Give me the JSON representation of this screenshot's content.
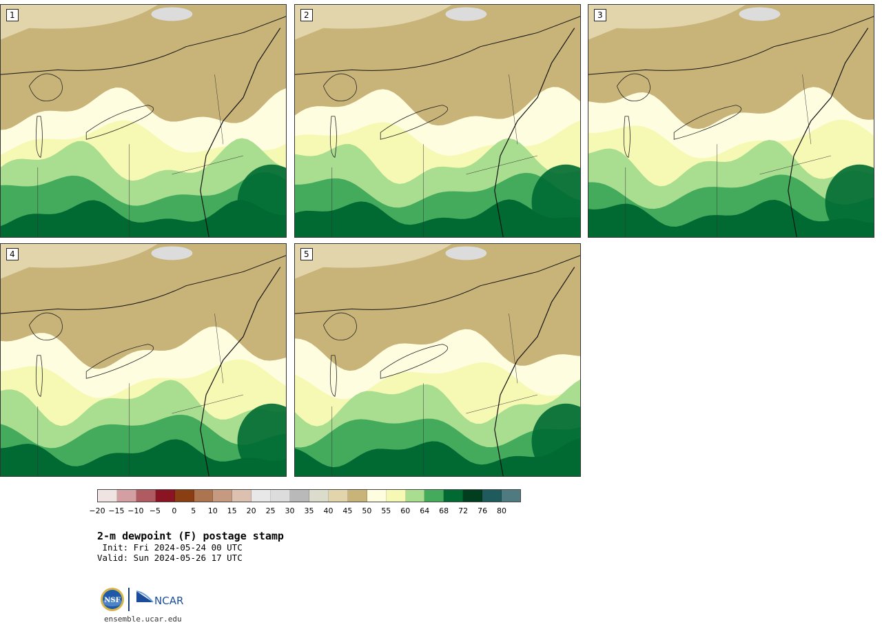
{
  "panels": [
    {
      "label": "1"
    },
    {
      "label": "2"
    },
    {
      "label": "3"
    },
    {
      "label": "4"
    },
    {
      "label": "5"
    }
  ],
  "colorbar": {
    "colors": [
      "#efe4e2",
      "#d39fa3",
      "#b05b62",
      "#8a1421",
      "#8a3f13",
      "#ad754f",
      "#c59a80",
      "#dcc0b0",
      "#e8e8e8",
      "#dcdcdc",
      "#b9b9b9",
      "#dcdccd",
      "#e2d5ac",
      "#c8b378",
      "#fffde0",
      "#f6f9b4",
      "#a9dd90",
      "#44aa5c",
      "#006a32",
      "#003e1f",
      "#1f5a5c",
      "#4f7b80"
    ],
    "ticks": [
      "−20",
      "−15",
      "−10",
      "−5",
      "0",
      "5",
      "10",
      "15",
      "20",
      "25",
      "30",
      "35",
      "40",
      "45",
      "50",
      "55",
      "60",
      "64",
      "68",
      "72",
      "76",
      "80"
    ]
  },
  "title": "2-m dewpoint (F) postage stamp",
  "init": " Init: Fri 2024-05-24 00 UTC",
  "valid": "Valid: Sun 2024-05-26 17 UTC",
  "logo": {
    "left": "NSF",
    "right": "NCAR"
  },
  "url": "ensemble.ucar.edu"
}
